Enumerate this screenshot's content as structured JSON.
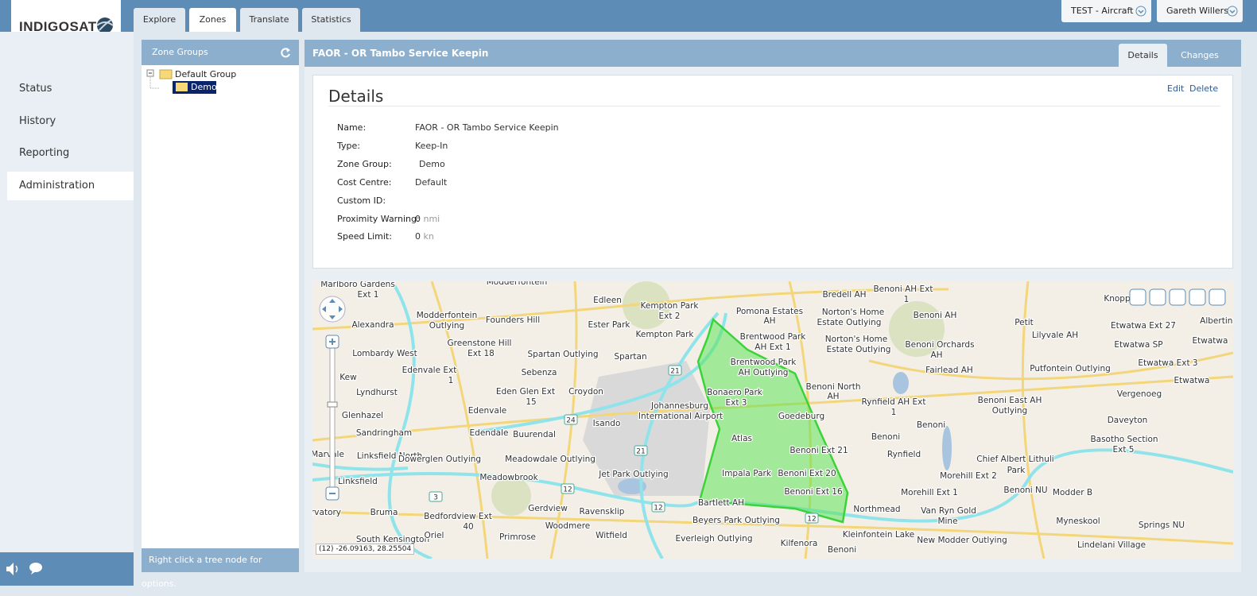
{
  "header": {
    "logo": "INDIGOSAT",
    "tabs": [
      "Explore",
      "Zones",
      "Translate",
      "Statistics"
    ],
    "vehicle_select": "TEST - Aircraft",
    "user_select": "Gareth Willers"
  },
  "sidebar": {
    "menu": [
      "Status",
      "History",
      "Reporting",
      "Administration"
    ]
  },
  "zone_groups": {
    "title": "Zone Groups",
    "tree": {
      "root": "Default Group",
      "children": [
        "Demo"
      ]
    },
    "footer": "Right click a tree node for options."
  },
  "zone": {
    "title": "FAOR - OR Tambo Service Keepin",
    "tabs": [
      "Details",
      "Changes"
    ],
    "details": {
      "heading": "Details",
      "actions": [
        "Edit",
        "Delete"
      ],
      "fields": [
        {
          "label": "Name:",
          "value": "FAOR - OR Tambo Service Keepin"
        },
        {
          "label": "Type:",
          "value": "Keep-In"
        },
        {
          "label": "Zone Group:",
          "value": "Demo"
        },
        {
          "label": "Cost Centre:",
          "value": "Default"
        },
        {
          "label": "Custom ID:"
        },
        {
          "label": "Proximity Warning:",
          "value": 0,
          "unit": "nmi"
        },
        {
          "label": "Speed Limit:",
          "value": 0,
          "unit": "kn"
        }
      ]
    }
  },
  "map": {
    "coordinates": "(12) -26.09163, 28.25504",
    "labels": [
      "Marlboro Gardens",
      "Ext 1",
      "Modderfontein",
      "Edleen",
      "Kempton Park",
      "Ext 2",
      "Pomona Estates",
      "AH",
      "Bredell AH",
      "Benoni AH Ext",
      "1",
      "Norton's Home",
      "Estate Outlying",
      "Benoni AH",
      "Alexandra",
      "Modderfontein",
      "Outlying",
      "Founders Hill",
      "Ester Park",
      "Kempton Park",
      "Brentwood Park",
      "AH Ext 1",
      "Norton's Home",
      "Estate Outlying",
      "Benoni Orchards",
      "AH",
      "Petit",
      "Lilyvale AH",
      "Etwatwa Ext 27",
      "Albertina",
      "Lombardy West",
      "Greenstone Hill",
      "Ext 18",
      "Spartan Outlying",
      "Spartan",
      "Etwatwa SP",
      "Etwatwa",
      "Brentwood Park",
      "AH Outlying",
      "Fairlead AH",
      "Putfontein Outlying",
      "Etwatwa Ext 3",
      "Edenvale Ext",
      "1",
      "Sebenza",
      "Kew",
      "Lyndhurst",
      "Eden Glen Ext",
      "15",
      "Croydon",
      "Bonaero Park",
      "Ext 3",
      "Benoni North",
      "AH",
      "Rynfield AH Ext",
      "1",
      "Benoni East AH",
      "Outlying",
      "Vergenoeg",
      "Etwatwa",
      "Glenhazel",
      "Edenvale",
      "Johannesburg",
      "International Airport",
      "Goedeburg",
      "Isando",
      "Daveyton",
      "Sandringham",
      "Edendale",
      "Buurendal",
      "Atlas",
      "Benoni",
      "Benoni",
      "Basotho Section",
      "Ext 5",
      "Linksfield North",
      "Dowerglen Outlying",
      "Meadowdale Outlying",
      "Benoni Ext 21",
      "Rynfield",
      "Chief Albert Lithuli",
      "Park",
      "Meadowbrook",
      "Jet Park Outlying",
      "Impala Park",
      "Benoni Ext 20",
      "Morehill Ext 2",
      "Linksfield",
      "Benoni Ext 16",
      "Morehill Ext 1",
      "Benoni NU",
      "Modder B",
      "Gerdview",
      "Ravensklip",
      "Bartlett AH",
      "Northmead",
      "Van Ryn Gold",
      "Mine",
      "Bruma",
      "Bedfordview Ext",
      "40",
      "Woodmere",
      "Beyers Park Outlying",
      "Myneskool",
      "Springs NU",
      "South Kensington",
      "Oriel",
      "Primrose",
      "Witfield",
      "Everleigh Outlying",
      "Kilfenora",
      "Kleinfontein Lake",
      "New Modder Outlying",
      "Lindelani Village",
      "Benoni",
      "Knopp",
      "Marvale",
      "rvatory"
    ],
    "road_shields": [
      "21",
      "24",
      "21",
      "12",
      "12",
      "3",
      "12"
    ]
  }
}
